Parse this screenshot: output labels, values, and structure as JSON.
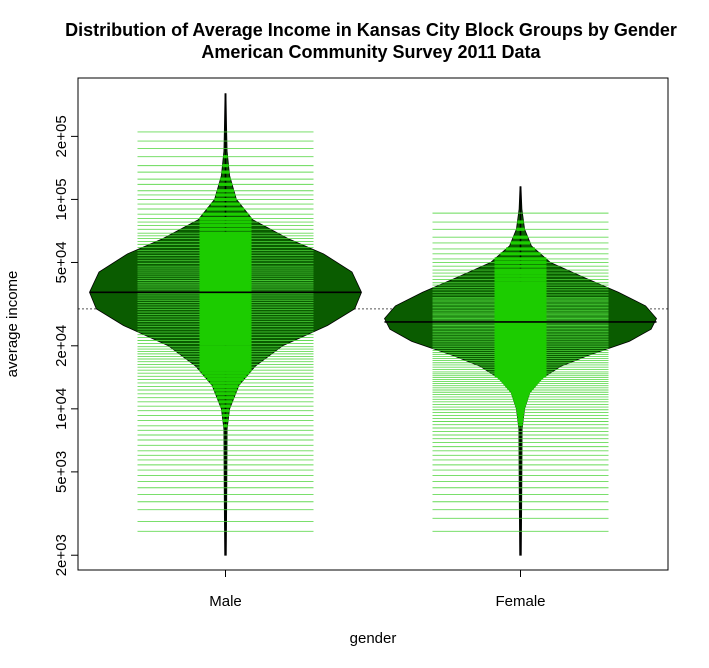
{
  "chart_data": {
    "type": "beanplot",
    "title": "Distribution of Average Income in Kansas City Block Groups by Gender",
    "subtitle": "American Community Survey 2011 Data",
    "xlabel": "gender",
    "ylabel": "average income",
    "y_scale": "log",
    "ylim": [
      1700,
      380000
    ],
    "y_ticks": [
      {
        "value": 2000,
        "label": "2e+03"
      },
      {
        "value": 5000,
        "label": "5e+03"
      },
      {
        "value": 10000,
        "label": "1e+04"
      },
      {
        "value": 20000,
        "label": "2e+04"
      },
      {
        "value": 50000,
        "label": "5e+04"
      },
      {
        "value": 100000,
        "label": "1e+05"
      },
      {
        "value": 200000,
        "label": "2e+05"
      }
    ],
    "categories": [
      "Male",
      "Female"
    ],
    "overall_mean": 30000,
    "colors": {
      "bean_fill": "#0a5c00",
      "bean_core": "#1ccc00",
      "bean_lines": "#4cd43a",
      "frame": "#000000",
      "mean_line": "#000000",
      "overall_line": "#555555"
    },
    "beans": [
      {
        "category": "Male",
        "mean": 36000,
        "min": 2000,
        "max": 320000,
        "width_profile": [
          [
            2000,
            0.006
          ],
          [
            3000,
            0.008
          ],
          [
            5000,
            0.01
          ],
          [
            8000,
            0.012
          ],
          [
            10000,
            0.03
          ],
          [
            13000,
            0.1
          ],
          [
            16000,
            0.22
          ],
          [
            20000,
            0.42
          ],
          [
            25000,
            0.75
          ],
          [
            30000,
            0.95
          ],
          [
            36000,
            1.0
          ],
          [
            45000,
            0.93
          ],
          [
            55000,
            0.72
          ],
          [
            65000,
            0.46
          ],
          [
            80000,
            0.2
          ],
          [
            100000,
            0.08
          ],
          [
            130000,
            0.03
          ],
          [
            170000,
            0.012
          ],
          [
            220000,
            0.008
          ],
          [
            320000,
            0.004
          ]
        ],
        "values": [
          2600,
          2900,
          3300,
          3600,
          3900,
          4200,
          4500,
          4800,
          5100,
          5400,
          5700,
          6000,
          6300,
          6700,
          7100,
          7500,
          7900,
          8300,
          8800,
          9300,
          9800,
          10300,
          10800,
          11300,
          11800,
          12300,
          12800,
          13300,
          13800,
          14300,
          14800,
          15300,
          15800,
          16300,
          16800,
          17300,
          17800,
          18300,
          18800,
          19300,
          19800,
          20500,
          21200,
          21900,
          22600,
          23300,
          24000,
          24700,
          25400,
          26100,
          26800,
          27500,
          28200,
          29000,
          29800,
          30600,
          31400,
          32200,
          33000,
          33800,
          34600,
          35400,
          36200,
          37000,
          37800,
          38600,
          39400,
          40200,
          41000,
          42000,
          43000,
          44000,
          45000,
          46000,
          47000,
          48000,
          49500,
          51000,
          52500,
          54000,
          55500,
          57000,
          59000,
          61000,
          63000,
          65000,
          67000,
          69000,
          72000,
          75000,
          78000,
          81000,
          85000,
          90000,
          95000,
          100000,
          105000,
          110000,
          118000,
          125000,
          135000,
          145000,
          160000,
          175000,
          190000,
          210000
        ]
      },
      {
        "category": "Female",
        "mean": 26000,
        "min": 2000,
        "max": 115000,
        "width_profile": [
          [
            2000,
            0.006
          ],
          [
            3000,
            0.008
          ],
          [
            5000,
            0.01
          ],
          [
            8000,
            0.012
          ],
          [
            10000,
            0.03
          ],
          [
            12000,
            0.07
          ],
          [
            14000,
            0.16
          ],
          [
            16000,
            0.3
          ],
          [
            18000,
            0.5
          ],
          [
            21000,
            0.8
          ],
          [
            24000,
            0.96
          ],
          [
            27000,
            1.0
          ],
          [
            31000,
            0.92
          ],
          [
            36000,
            0.72
          ],
          [
            42000,
            0.48
          ],
          [
            50000,
            0.22
          ],
          [
            60000,
            0.08
          ],
          [
            72000,
            0.03
          ],
          [
            90000,
            0.01
          ],
          [
            115000,
            0.004
          ]
        ],
        "values": [
          2600,
          3000,
          3300,
          3600,
          3900,
          4200,
          4500,
          4800,
          5100,
          5400,
          5700,
          6000,
          6300,
          6600,
          6900,
          7200,
          7500,
          7800,
          8100,
          8400,
          8700,
          9000,
          9300,
          9600,
          9900,
          10200,
          10500,
          10800,
          11100,
          11400,
          11700,
          12000,
          12300,
          12600,
          12900,
          13200,
          13500,
          13800,
          14100,
          14400,
          14700,
          15000,
          15400,
          15800,
          16200,
          16600,
          17000,
          17400,
          17800,
          18200,
          18600,
          19000,
          19400,
          19800,
          20200,
          20600,
          21000,
          21400,
          21800,
          22200,
          22600,
          23000,
          23400,
          23800,
          24200,
          24600,
          25000,
          25400,
          25800,
          26200,
          26600,
          27000,
          27400,
          27800,
          28200,
          28600,
          29000,
          29500,
          30000,
          30500,
          31000,
          31500,
          32000,
          32500,
          33000,
          33500,
          34000,
          35000,
          36000,
          37000,
          38000,
          39000,
          40000,
          41500,
          43000,
          44500,
          46000,
          48000,
          50000,
          52000,
          55000,
          58000,
          62000,
          66000,
          72000,
          78000,
          86000
        ]
      }
    ]
  }
}
